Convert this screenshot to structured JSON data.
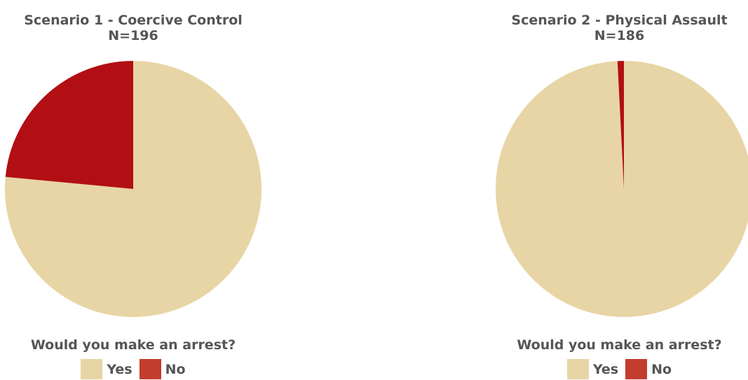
{
  "colors": {
    "yes": "#E8D5A5",
    "no": "#B10F13",
    "legend_no": "#C33C2E",
    "text": "#555555"
  },
  "chart_data": [
    {
      "type": "pie",
      "title": "Scenario 1 - Coercive Control",
      "subtitle": "N=196",
      "legend_title": "Would you make an arrest?",
      "categories": [
        "Yes",
        "No"
      ],
      "values": [
        76.5,
        23.5
      ],
      "legend_placement": "bottom"
    },
    {
      "type": "pie",
      "title": "Scenario 2 - Physical Assault",
      "subtitle": "N=186",
      "legend_title": "Would you make an arrest?",
      "categories": [
        "Yes",
        "No"
      ],
      "values": [
        99.2,
        0.8
      ],
      "legend_placement": "bottom"
    }
  ]
}
